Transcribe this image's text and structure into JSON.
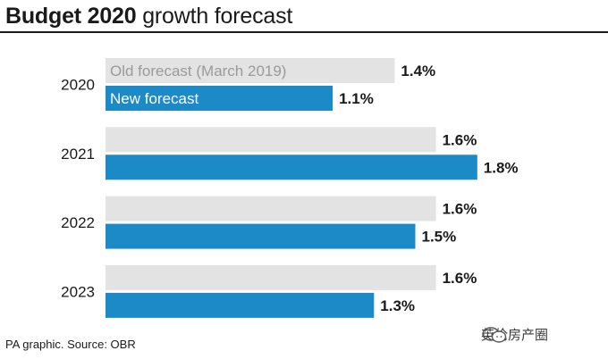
{
  "header": {
    "title_bold": "Budget 2020",
    "title_rest": " growth forecast"
  },
  "footer": {
    "source": "PA graphic. Source: OBR",
    "watermark": "英伦房产圈"
  },
  "colors": {
    "old_forecast": "#e3e3e3",
    "new_forecast": "#1c8ac7",
    "text": "#1a1a1a"
  },
  "chart_data": {
    "type": "bar",
    "orientation": "horizontal",
    "title": "Budget 2020 growth forecast",
    "categories": [
      "2020",
      "2021",
      "2022",
      "2023"
    ],
    "series": [
      {
        "name": "Old forecast (March 2019)",
        "values": [
          1.4,
          1.6,
          1.6,
          1.6
        ]
      },
      {
        "name": "New forecast",
        "values": [
          1.1,
          1.8,
          1.5,
          1.3
        ]
      }
    ],
    "value_labels": [
      [
        "1.4%",
        "1.6%",
        "1.6%",
        "1.6%"
      ],
      [
        "1.1%",
        "1.8%",
        "1.5%",
        "1.3%"
      ]
    ],
    "xlim": [
      0,
      1.8
    ],
    "grid": false,
    "legend": "inline labels inside the first category's bars"
  }
}
